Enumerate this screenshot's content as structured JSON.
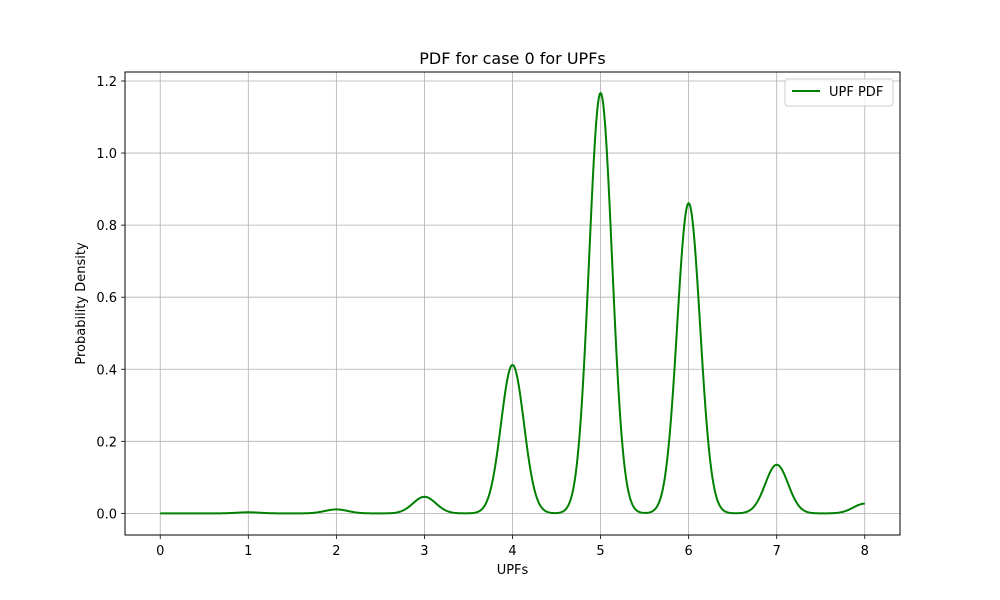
{
  "chart_data": {
    "type": "line",
    "title": "PDF for case 0 for UPFs",
    "xlabel": "UPFs",
    "ylabel": "Probability Density",
    "xlim": [
      -0.4,
      8.4
    ],
    "ylim": [
      -0.06,
      1.225
    ],
    "xticks": [
      0,
      1,
      2,
      3,
      4,
      5,
      6,
      7,
      8
    ],
    "yticks": [
      0.0,
      0.2,
      0.4,
      0.6,
      0.8,
      1.0,
      1.2
    ],
    "ytick_labels": [
      "0.0",
      "0.2",
      "0.4",
      "0.6",
      "0.8",
      "1.0",
      "1.2"
    ],
    "grid": true,
    "legend_position": "top-right",
    "series": [
      {
        "name": "UPF PDF",
        "color": "#008000",
        "x_range": [
          0,
          8
        ],
        "peaks": [
          {
            "x": 1,
            "y": 0.003
          },
          {
            "x": 2,
            "y": 0.011
          },
          {
            "x": 3,
            "y": 0.046
          },
          {
            "x": 4,
            "y": 0.412
          },
          {
            "x": 5,
            "y": 1.167
          },
          {
            "x": 6,
            "y": 0.861
          },
          {
            "x": 7,
            "y": 0.135
          },
          {
            "x": 8,
            "y": 0.027
          }
        ],
        "peak_sigma": 0.13
      }
    ]
  }
}
